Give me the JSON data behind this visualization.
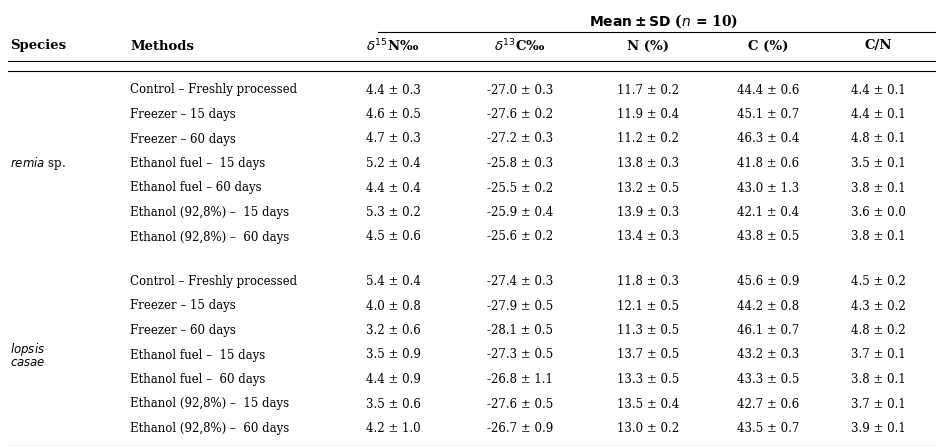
{
  "rows_group1": [
    [
      "Control – Freshly processed",
      "4.4 ± 0.3",
      "-27.0 ± 0.3",
      "11.7 ± 0.2",
      "44.4 ± 0.6",
      "4.4 ± 0.1"
    ],
    [
      "Freezer – 15 days",
      "4.6 ± 0.5",
      "-27.6 ± 0.2",
      "11.9 ± 0.4",
      "45.1 ± 0.7",
      "4.4 ± 0.1"
    ],
    [
      "Freezer – 60 days",
      "4.7 ± 0.3",
      "-27.2 ± 0.3",
      "11.2 ± 0.2",
      "46.3 ± 0.4",
      "4.8 ± 0.1"
    ],
    [
      "Ethanol fuel –  15 days",
      "5.2 ± 0.4",
      "-25.8 ± 0.3",
      "13.8 ± 0.3",
      "41.8 ± 0.6",
      "3.5 ± 0.1"
    ],
    [
      "Ethanol fuel – 60 days",
      "4.4 ± 0.4",
      "-25.5 ± 0.2",
      "13.2 ± 0.5",
      "43.0 ± 1.3",
      "3.8 ± 0.1"
    ],
    [
      "Ethanol (92,8%) –  15 days",
      "5.3 ± 0.2",
      "-25.9 ± 0.4",
      "13.9 ± 0.3",
      "42.1 ± 0.4",
      "3.6 ± 0.0"
    ],
    [
      "Ethanol (92,8%) –  60 days",
      "4.5 ± 0.6",
      "-25.6 ± 0.2",
      "13.4 ± 0.3",
      "43.8 ± 0.5",
      "3.8 ± 0.1"
    ]
  ],
  "rows_group2": [
    [
      "Control – Freshly processed",
      "5.4 ± 0.4",
      "-27.4 ± 0.3",
      "11.8 ± 0.3",
      "45.6 ± 0.9",
      "4.5 ± 0.2"
    ],
    [
      "Freezer – 15 days",
      "4.0 ± 0.8",
      "-27.9 ± 0.5",
      "12.1 ± 0.5",
      "44.2 ± 0.8",
      "4.3 ± 0.2"
    ],
    [
      "Freezer – 60 days",
      "3.2 ± 0.6",
      "-28.1 ± 0.5",
      "11.3 ± 0.5",
      "46.1 ± 0.7",
      "4.8 ± 0.2"
    ],
    [
      "Ethanol fuel –  15 days",
      "3.5 ± 0.9",
      "-27.3 ± 0.5",
      "13.7 ± 0.5",
      "43.2 ± 0.3",
      "3.7 ± 0.1"
    ],
    [
      "Ethanol fuel –  60 days",
      "4.4 ± 0.9",
      "-26.8 ± 1.1",
      "13.3 ± 0.5",
      "43.3 ± 0.5",
      "3.8 ± 0.1"
    ],
    [
      "Ethanol (92,8%) –  15 days",
      "3.5 ± 0.6",
      "-27.6 ± 0.5",
      "13.5 ± 0.4",
      "42.7 ± 0.6",
      "3.7 ± 0.1"
    ],
    [
      "Ethanol (92,8%) –  60 days",
      "4.2 ± 1.0",
      "-26.7 ± 0.9",
      "13.0 ± 0.2",
      "43.5 ± 0.7",
      "3.9 ± 0.1"
    ]
  ],
  "species1_line1": "remia",
  "species1_line2": "sp.",
  "species2_line1": "lopsis",
  "species2_line2": "casae",
  "title": "Mean ± SD (η = 10)",
  "col_headers": [
    "Species",
    "Methods",
    "δ¹⁵N‰",
    "δ¹³C‰",
    "N (%)",
    "C (%)",
    "C/N"
  ],
  "bg_color": "#ffffff",
  "text_color": "#000000",
  "font_size": 8.5,
  "header_font_size": 9.5
}
